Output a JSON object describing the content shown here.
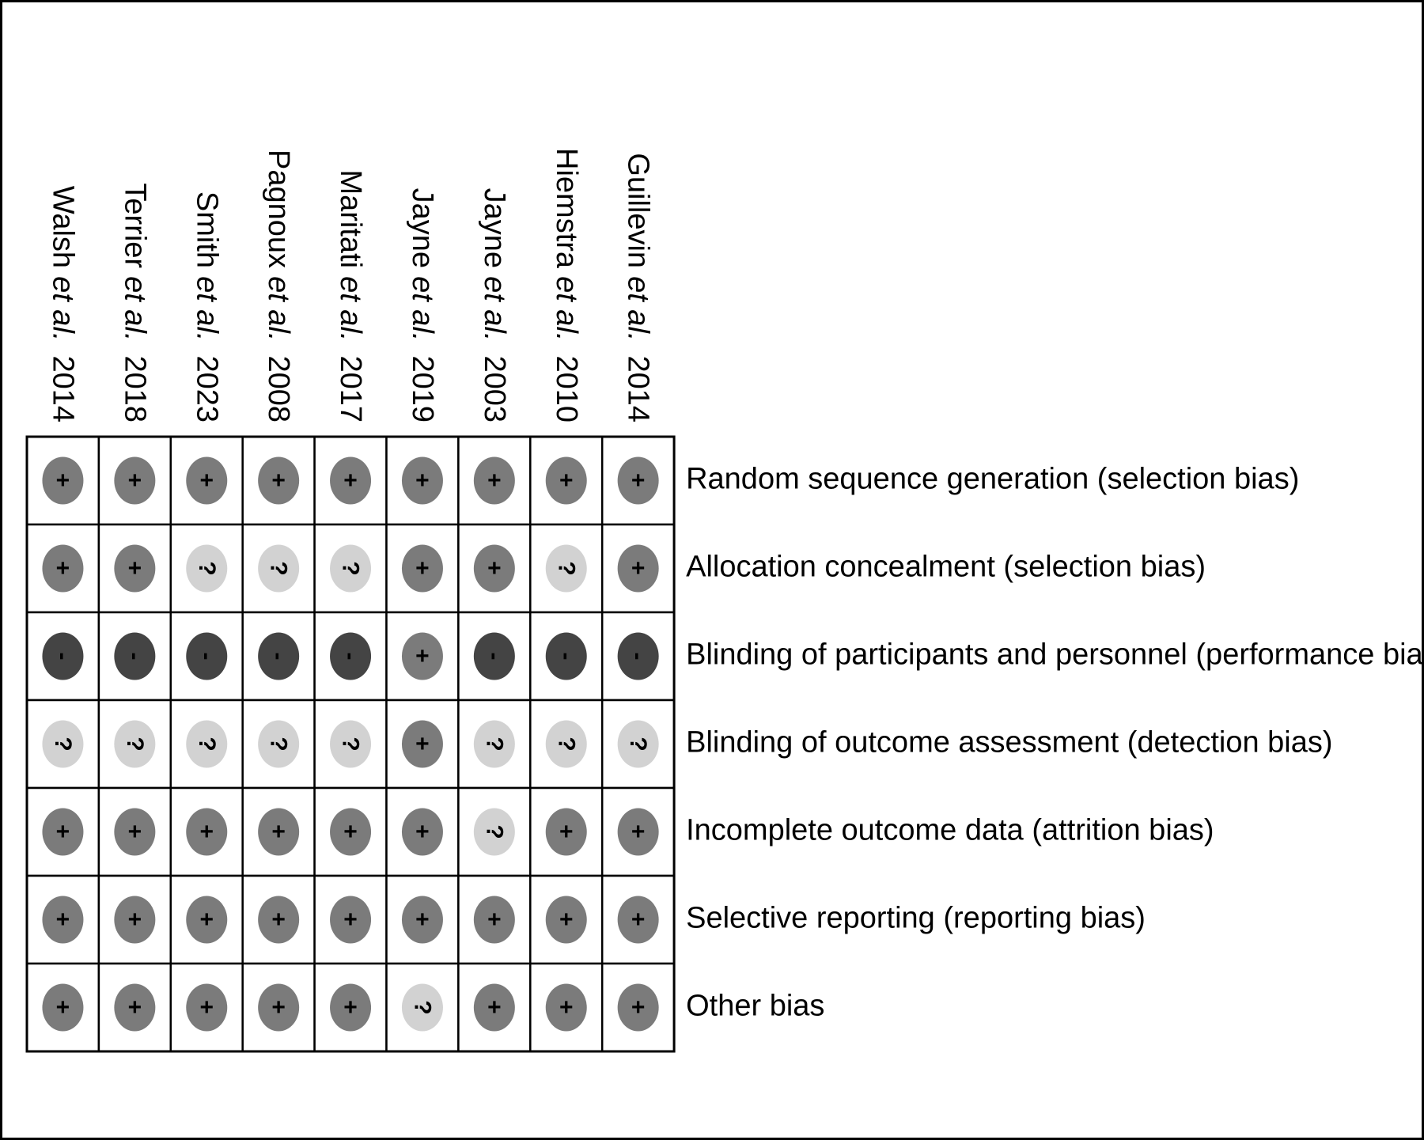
{
  "studies": [
    {
      "name": "Walsh",
      "etal": "et al.",
      "year": "2014"
    },
    {
      "name": "Terrier",
      "etal": "et al.",
      "year": "2018"
    },
    {
      "name": "Smith",
      "etal": "et al.",
      "year": "2023"
    },
    {
      "name": "Pagnoux",
      "etal": "et al.",
      "year": "2008"
    },
    {
      "name": "Maritati",
      "etal": "et al.",
      "year": "2017"
    },
    {
      "name": "Jayne",
      "etal": "et al.",
      "year": "2019"
    },
    {
      "name": "Jayne",
      "etal": "et al.",
      "year": "2003"
    },
    {
      "name": "Hiemstra",
      "etal": "et al.",
      "year": "2010"
    },
    {
      "name": "Guillevin",
      "etal": "et al.",
      "year": "2014"
    }
  ],
  "domains": [
    "Random sequence generation (selection bias)",
    "Allocation concealment (selection bias)",
    "Blinding of participants and personnel (performance bias)",
    "Blinding of outcome assessment (detection bias)",
    "Incomplete outcome data (attrition bias)",
    "Selective reporting (reporting bias)",
    "Other bias"
  ],
  "judgments": [
    [
      "+",
      "+",
      "+",
      "+",
      "+",
      "+",
      "+",
      "+",
      "+"
    ],
    [
      "+",
      "+",
      "?",
      "?",
      "?",
      "+",
      "+",
      "?",
      "+"
    ],
    [
      "-",
      "-",
      "-",
      "-",
      "-",
      "+",
      "-",
      "-",
      "-"
    ],
    [
      "?",
      "?",
      "?",
      "?",
      "?",
      "+",
      "?",
      "?",
      "?"
    ],
    [
      "+",
      "+",
      "+",
      "+",
      "+",
      "+",
      "?",
      "+",
      "+"
    ],
    [
      "+",
      "+",
      "+",
      "+",
      "+",
      "+",
      "+",
      "+",
      "+"
    ],
    [
      "+",
      "+",
      "+",
      "+",
      "+",
      "?",
      "+",
      "+",
      "+"
    ]
  ],
  "colors": {
    "+": "#7b7b7b",
    "?": "#d2d2d2",
    "-": "#444444"
  }
}
